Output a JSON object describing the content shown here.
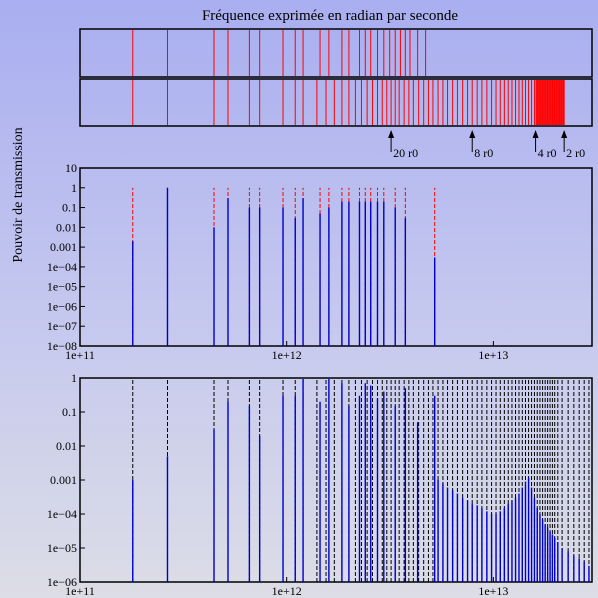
{
  "figure": {
    "title": "Fréquence exprimée en radian par seconde",
    "ylabel": "Pouvoir de transmission",
    "markers": [
      {
        "label": "20 r0",
        "x": 3200000000000.0
      },
      {
        "label": "8 r0",
        "x": 7900000000000.0
      },
      {
        "label": "4 r0",
        "x": 16000000000000.0
      },
      {
        "label": "2 r0",
        "x": 22000000000000.0
      }
    ]
  },
  "chart_data": [
    {
      "type": "barcode",
      "panel": "spectrum-upper",
      "color": "#ff0000",
      "x_scale": "log",
      "xlim": [
        100000000000.0,
        30000000000000.0
      ],
      "lines": [
        180000000000.0,
        265000000000.0,
        445000000000.0,
        520000000000.0,
        660000000000.0,
        740000000000.0,
        960000000000.0,
        1100000000000.0,
        1200000000000.0,
        1450000000000.0,
        1600000000000.0,
        1850000000000.0,
        2000000000000.0,
        2250000000000.0,
        2400000000000.0,
        2550000000000.0,
        2750000000000.0,
        2950000000000.0,
        3150000000000.0,
        3350000000000.0,
        3550000000000.0,
        3750000000000.0,
        3950000000000.0,
        4300000000000.0,
        4700000000000.0
      ]
    },
    {
      "type": "barcode",
      "panel": "spectrum-lower",
      "color": "#ff0000",
      "x_scale": "log",
      "xlim": [
        100000000000.0,
        30000000000000.0
      ],
      "lines": [
        180000000000.0,
        265000000000.0,
        445000000000.0,
        520000000000.0,
        660000000000.0,
        740000000000.0,
        960000000000.0,
        1100000000000.0,
        1200000000000.0,
        1400000000000.0,
        1550000000000.0,
        1700000000000.0,
        1850000000000.0,
        2000000000000.0,
        2150000000000.0,
        2300000000000.0,
        2450000000000.0,
        2600000000000.0,
        2750000000000.0,
        2900000000000.0,
        3050000000000.0,
        3200000000000.0,
        3350000000000.0,
        3500000000000.0,
        3700000000000.0,
        3900000000000.0,
        4100000000000.0,
        4350000000000.0,
        4600000000000.0,
        4850000000000.0,
        5100000000000.0,
        5400000000000.0,
        5700000000000.0,
        6000000000000.0,
        6350000000000.0,
        6700000000000.0,
        7100000000000.0,
        7500000000000.0,
        7900000000000.0,
        8350000000000.0,
        8800000000000.0,
        9300000000000.0,
        9800000000000.0,
        10300000000000.0,
        10800000000000.0,
        11300000000000.0,
        11800000000000.0,
        12300000000000.0,
        12800000000000.0,
        13300000000000.0,
        13800000000000.0,
        14300000000000.0,
        14800000000000.0,
        15300000000000.0,
        15800000000000.0,
        16300000000000.0,
        16800000000000.0,
        17300000000000.0,
        17800000000000.0,
        18300000000000.0,
        18800000000000.0,
        19300000000000.0,
        19800000000000.0,
        20300000000000.0,
        20800000000000.0,
        21300000000000.0,
        21800000000000.0,
        22000000000000.0
      ],
      "fill_band": [
        16000000000000.0,
        22000000000000.0
      ]
    },
    {
      "type": "spikes",
      "panel": "transmission-upper",
      "x_scale": "log",
      "y_scale": "log",
      "xlim": [
        100000000000.0,
        30000000000000.0
      ],
      "ylim": [
        1e-08,
        10
      ],
      "xticks": [
        "1e+11",
        "1e+12",
        "1e+13"
      ],
      "yticks": [
        "1e−08",
        "1e−07",
        "1e−06",
        "1e−05",
        "1e−04",
        "0.001",
        "0.01",
        "0.1",
        "1",
        "10"
      ],
      "series": [
        {
          "style": "dashed",
          "color": "#ff0000",
          "x": [
            180000000000.0,
            265000000000.0,
            445000000000.0,
            520000000000.0,
            660000000000.0,
            740000000000.0,
            960000000000.0,
            1100000000000.0,
            1200000000000.0,
            1450000000000.0,
            1600000000000.0,
            1850000000000.0,
            2000000000000.0,
            2250000000000.0,
            2400000000000.0,
            2550000000000.0,
            2750000000000.0,
            2950000000000.0,
            3350000000000.0,
            3750000000000.0,
            5200000000000.0
          ],
          "y": [
            1,
            1,
            1,
            1,
            1,
            1,
            1,
            1,
            1,
            1,
            1,
            1,
            1,
            1,
            1,
            1,
            1,
            1,
            1,
            1,
            1
          ]
        },
        {
          "style": "solid",
          "color": "#0000cc",
          "x": [
            180000000000.0,
            265000000000.0,
            445000000000.0,
            520000000000.0,
            660000000000.0,
            740000000000.0,
            960000000000.0,
            1100000000000.0,
            1200000000000.0,
            1450000000000.0,
            1600000000000.0,
            1850000000000.0,
            2000000000000.0,
            2250000000000.0,
            2400000000000.0,
            2550000000000.0,
            2750000000000.0,
            2950000000000.0,
            3350000000000.0,
            3750000000000.0,
            5200000000000.0
          ],
          "y": [
            0.002,
            1,
            0.01,
            0.3,
            0.1,
            0.1,
            0.1,
            0.03,
            0.3,
            0.05,
            0.1,
            0.2,
            0.2,
            0.2,
            0.2,
            0.2,
            0.2,
            0.2,
            0.1,
            0.03,
            0.0003
          ]
        }
      ]
    },
    {
      "type": "spikes",
      "panel": "transmission-lower",
      "x_scale": "log",
      "y_scale": "log",
      "xlim": [
        100000000000.0,
        30000000000000.0
      ],
      "ylim": [
        1e-06,
        1
      ],
      "xticks": [
        "1e+11",
        "1e+12",
        "1e+13"
      ],
      "yticks": [
        "1e−06",
        "1e−05",
        "1e−04",
        "0.001",
        "0.01",
        "0.1",
        "1"
      ],
      "series": [
        {
          "style": "dashed",
          "color": "#000000",
          "x": [
            180000000000.0,
            265000000000.0,
            445000000000.0,
            520000000000.0,
            660000000000.0,
            740000000000.0,
            960000000000.0,
            1100000000000.0,
            1200000000000.0,
            1400000000000.0,
            1550000000000.0,
            1700000000000.0,
            1850000000000.0,
            2000000000000.0,
            2150000000000.0,
            2300000000000.0,
            2450000000000.0,
            2600000000000.0,
            2750000000000.0,
            2900000000000.0,
            3050000000000.0,
            3200000000000.0,
            3350000000000.0,
            3500000000000.0,
            3700000000000.0,
            3900000000000.0,
            4100000000000.0,
            4350000000000.0,
            4600000000000.0,
            4850000000000.0,
            5100000000000.0,
            5400000000000.0,
            5700000000000.0,
            6000000000000.0,
            6350000000000.0,
            6700000000000.0,
            7100000000000.0,
            7500000000000.0,
            7900000000000.0,
            8350000000000.0,
            8800000000000.0,
            9300000000000.0,
            9800000000000.0,
            10300000000000.0,
            10800000000000.0,
            11300000000000.0,
            11800000000000.0,
            12300000000000.0,
            12800000000000.0,
            13300000000000.0,
            13800000000000.0,
            14300000000000.0,
            14800000000000.0,
            15300000000000.0,
            15800000000000.0,
            16300000000000.0,
            16800000000000.0,
            17300000000000.0,
            17800000000000.0,
            18300000000000.0,
            18800000000000.0,
            19300000000000.0,
            19800000000000.0,
            20500000000000.0,
            21500000000000.0,
            23000000000000.0,
            24500000000000.0,
            26000000000000.0,
            27500000000000.0,
            29000000000000.0
          ],
          "y": [
            1,
            1,
            1,
            1,
            1,
            1,
            1,
            1,
            1,
            1,
            1,
            1,
            1,
            1,
            1,
            1,
            1,
            1,
            1,
            1,
            1,
            1,
            1,
            1,
            1,
            1,
            1,
            1,
            1,
            1,
            1,
            1,
            1,
            1,
            1,
            1,
            1,
            1,
            1,
            1,
            1,
            1,
            1,
            1,
            1,
            1,
            1,
            1,
            1,
            1,
            1,
            1,
            1,
            1,
            1,
            1,
            1,
            1,
            1,
            1,
            1,
            1,
            1,
            1,
            1,
            1,
            1,
            1,
            1,
            1
          ]
        },
        {
          "style": "solid",
          "color": "#0000cc",
          "x": [
            180000000000.0,
            265000000000.0,
            445000000000.0,
            520000000000.0,
            660000000000.0,
            740000000000.0,
            960000000000.0,
            1100000000000.0,
            1200000000000.0,
            1450000000000.0,
            1600000000000.0,
            1850000000000.0,
            2000000000000.0,
            2250000000000.0,
            2400000000000.0,
            2550000000000.0,
            2750000000000.0,
            2950000000000.0,
            3350000000000.0,
            3750000000000.0,
            4300000000000.0,
            5200000000000.0
          ],
          "y": [
            0.001,
            0.005,
            0.03,
            0.2,
            0.15,
            0.02,
            0.3,
            0.3,
            1,
            0.2,
            1,
            0.7,
            0.15,
            0.3,
            0.7,
            0.6,
            0.25,
            0.4,
            0.15,
            0.5,
            0.05,
            0.3
          ]
        },
        {
          "style": "solid",
          "color": "#0000cc",
          "x": [
            5400000000000.0,
            5700000000000.0,
            6000000000000.0,
            6350000000000.0,
            6700000000000.0,
            7100000000000.0,
            7500000000000.0,
            7900000000000.0,
            8350000000000.0,
            8800000000000.0,
            9300000000000.0,
            9800000000000.0,
            10300000000000.0,
            10800000000000.0,
            11300000000000.0,
            11800000000000.0,
            12300000000000.0,
            12800000000000.0,
            13300000000000.0,
            13800000000000.0,
            14300000000000.0,
            14800000000000.0,
            15300000000000.0,
            15800000000000.0,
            16300000000000.0,
            16800000000000.0,
            17300000000000.0,
            17800000000000.0,
            18300000000000.0,
            18800000000000.0,
            19300000000000.0,
            19800000000000.0,
            20500000000000.0,
            21500000000000.0,
            23000000000000.0,
            24500000000000.0,
            26000000000000.0,
            27500000000000.0,
            29000000000000.0
          ],
          "y": [
            0.001,
            0.0008,
            0.0006,
            0.0005,
            0.0004,
            0.0003,
            0.00025,
            0.0002,
            0.00018,
            0.00015,
            0.00012,
            0.0001,
            0.0001,
            0.00012,
            0.00015,
            0.0002,
            0.00025,
            0.0003,
            0.0004,
            0.0006,
            0.0009,
            0.0012,
            0.0006,
            0.0003,
            0.00015,
            0.0001,
            7e-05,
            5e-05,
            4e-05,
            3e-05,
            2.5e-05,
            2e-05,
            1.5e-05,
            1e-05,
            8e-06,
            6e-06,
            5e-06,
            4e-06,
            3e-06
          ]
        }
      ]
    }
  ]
}
